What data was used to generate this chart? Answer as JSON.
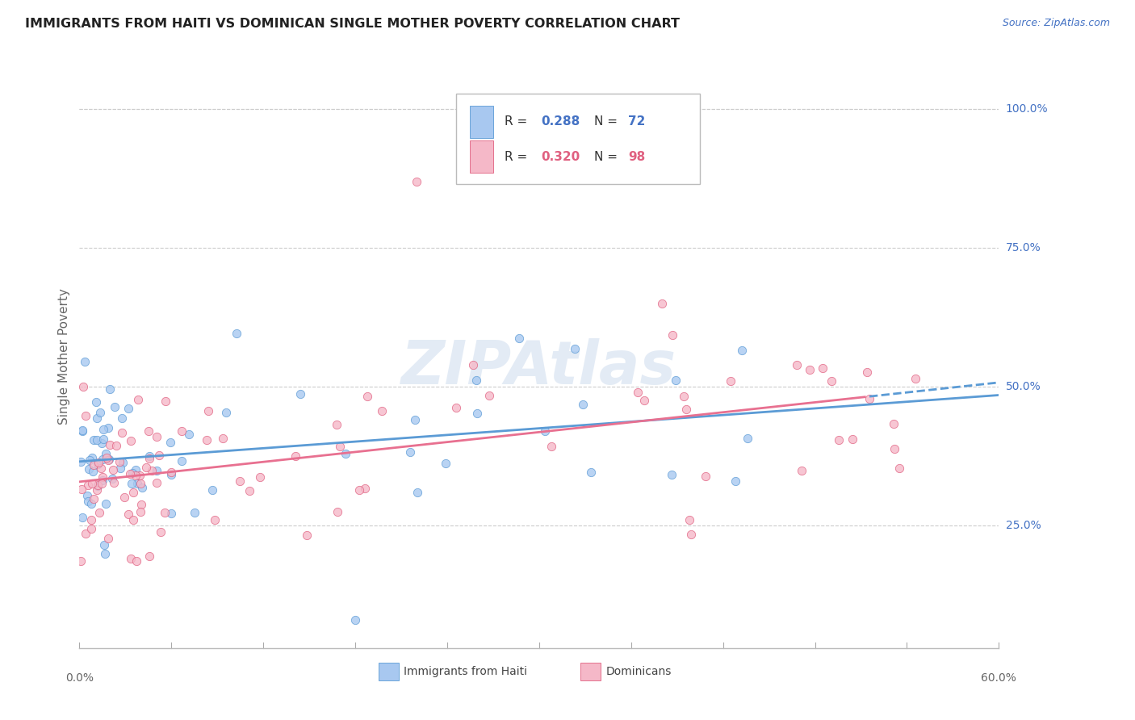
{
  "title": "IMMIGRANTS FROM HAITI VS DOMINICAN SINGLE MOTHER POVERTY CORRELATION CHART",
  "source": "Source: ZipAtlas.com",
  "ylabel": "Single Mother Poverty",
  "xmin": 0.0,
  "xmax": 0.6,
  "ymin": 0.03,
  "ymax": 1.08,
  "ytick_vals": [
    0.25,
    0.5,
    0.75,
    1.0
  ],
  "ytick_labels": [
    "25.0%",
    "50.0%",
    "75.0%",
    "100.0%"
  ],
  "haiti_color": "#A8C8F0",
  "haiti_edge_color": "#5B9BD5",
  "dom_color": "#F5B8C8",
  "dom_edge_color": "#E06080",
  "haiti_line_color": "#5B9BD5",
  "dom_line_color": "#E87090",
  "dashed_line_color": "#5B9BD5",
  "background_color": "#FFFFFF",
  "grid_color": "#CCCCCC",
  "title_color": "#222222",
  "axis_label_color": "#666666",
  "right_tick_color": "#4472C4",
  "source_color": "#4472C4",
  "watermark_color": "#C8D8EC",
  "legend_haiti_color": "#4472C4",
  "legend_dom_color": "#E06080",
  "scatter_alpha": 0.8,
  "scatter_size": 55,
  "haiti_N": 72,
  "dom_N": 98,
  "haiti_R": 0.288,
  "dom_R": 0.32,
  "haiti_line_intercept": 0.355,
  "haiti_line_slope": 0.28,
  "dom_line_intercept": 0.33,
  "dom_line_slope": 0.28
}
